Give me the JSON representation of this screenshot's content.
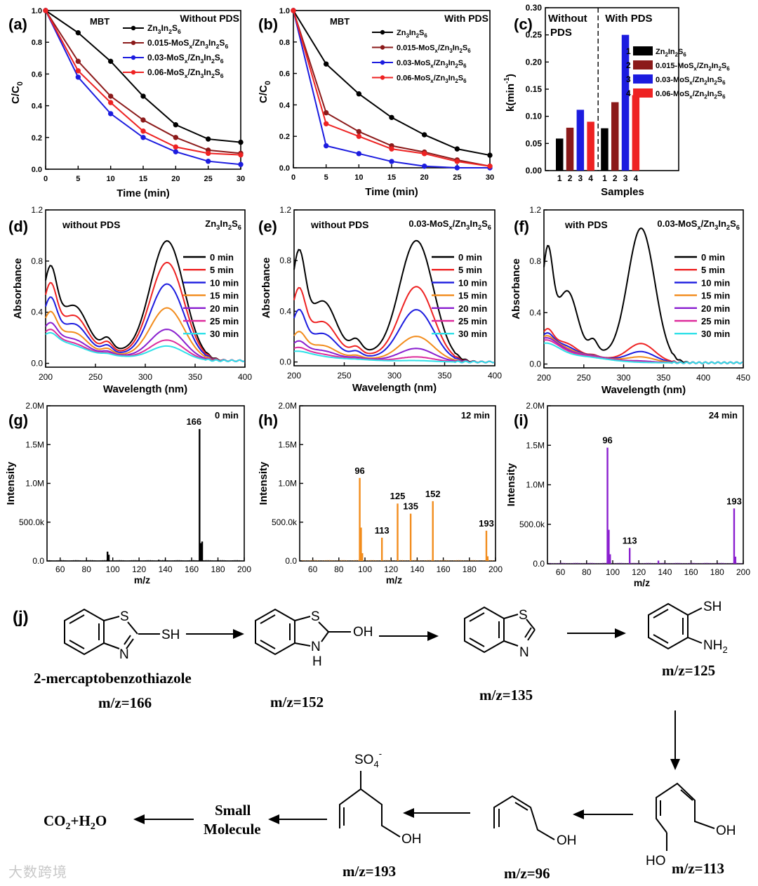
{
  "chart_data": [
    {
      "id": "a",
      "panel_label": "(a)",
      "type": "line",
      "title_left": "MBT",
      "title_right": "Without PDS",
      "xlabel": "Time (min)",
      "ylabel": "C/C0",
      "xlim": [
        0,
        30
      ],
      "ylim": [
        0,
        1.0
      ],
      "xticks": [
        "0",
        "5",
        "10",
        "15",
        "20",
        "25",
        "30"
      ],
      "yticks": [
        "0.0",
        "0.2",
        "0.4",
        "0.6",
        "0.8",
        "1.0"
      ],
      "x": [
        0,
        5,
        10,
        15,
        20,
        25,
        30
      ],
      "series": [
        {
          "name": "Zn3In2S6",
          "label_main": "Zn",
          "label_sub": "3",
          "label_rest": "In",
          "label_sub2": "2",
          "label_rest2": "S",
          "label_sub3": "6",
          "label_pre": "",
          "color": "#000000",
          "values": [
            1.0,
            0.86,
            0.68,
            0.46,
            0.28,
            0.19,
            0.17
          ]
        },
        {
          "name": "0.015-MoSx/Zn3In2S6",
          "label_pre": "0.015-MoS",
          "color": "#8b1a1a",
          "values": [
            1.0,
            0.68,
            0.46,
            0.31,
            0.2,
            0.12,
            0.1
          ]
        },
        {
          "name": "0.03-MoSx/Zn3In2S6",
          "label_pre": "0.03-MoS",
          "color": "#1c1cdf",
          "values": [
            1.0,
            0.58,
            0.35,
            0.2,
            0.11,
            0.05,
            0.03
          ]
        },
        {
          "name": "0.06-MoSx/Zn3In2S6",
          "label_pre": "0.06-MoS",
          "color": "#ee2222",
          "values": [
            1.0,
            0.62,
            0.42,
            0.24,
            0.14,
            0.1,
            0.09
          ]
        }
      ]
    },
    {
      "id": "b",
      "panel_label": "(b)",
      "type": "line",
      "title_left": "MBT",
      "title_right": "With PDS",
      "xlabel": "Time (min)",
      "ylabel": "C/C0",
      "xlim": [
        0,
        30
      ],
      "ylim": [
        0,
        1.0
      ],
      "xticks": [
        "0",
        "5",
        "10",
        "15",
        "20",
        "25",
        "30"
      ],
      "yticks": [
        "0.0",
        "0.2",
        "0.4",
        "0.6",
        "0.8",
        "1.0"
      ],
      "x": [
        0,
        5,
        10,
        15,
        20,
        25,
        30
      ],
      "series": [
        {
          "name": "Zn3In2S6",
          "label_pre": "",
          "color": "#000000",
          "values": [
            1.0,
            0.66,
            0.47,
            0.32,
            0.21,
            0.12,
            0.08
          ]
        },
        {
          "name": "0.015-MoSx/Zn3In2S6",
          "label_pre": "0.015-MoS",
          "color": "#8b1a1a",
          "values": [
            1.0,
            0.35,
            0.23,
            0.14,
            0.1,
            0.05,
            0.01
          ]
        },
        {
          "name": "0.03-MoSx/Zn3In2S6",
          "label_pre": "0.03-MoS",
          "color": "#1c1cdf",
          "values": [
            1.0,
            0.14,
            0.09,
            0.04,
            0.01,
            0.0,
            0.0
          ]
        },
        {
          "name": "0.06-MoSx/Zn3In2S6",
          "label_pre": "0.06-MoS",
          "color": "#ee2222",
          "values": [
            1.0,
            0.28,
            0.2,
            0.12,
            0.09,
            0.04,
            0.01
          ]
        }
      ]
    },
    {
      "id": "c",
      "panel_label": "(c)",
      "type": "bar",
      "xlabel": "Samples",
      "ylabel": "k(min-1)",
      "ylim": [
        0,
        0.3
      ],
      "yticks": [
        "0.00",
        "0.05",
        "0.10",
        "0.15",
        "0.20",
        "0.25",
        "0.30"
      ],
      "group_labels": [
        "Without PDS",
        "With PDS"
      ],
      "group_left_line1": "Without",
      "group_left_line2": "PDS",
      "group_right": "With PDS",
      "categories": [
        "1",
        "2",
        "3",
        "4",
        "1",
        "2",
        "3",
        "4"
      ],
      "values": [
        0.059,
        0.079,
        0.112,
        0.09,
        0.078,
        0.126,
        0.25,
        0.139
      ],
      "colors": [
        "#000000",
        "#8b1a1a",
        "#1c1cdf",
        "#ee2222",
        "#000000",
        "#8b1a1a",
        "#1c1cdf",
        "#ee2222"
      ],
      "legend": [
        {
          "num": "1",
          "name": "Zn2In2S6",
          "color": "#000000"
        },
        {
          "num": "2",
          "name": "0.015-MoSx/Zn2In2S6",
          "color": "#8b1a1a"
        },
        {
          "num": "3",
          "name": "0.03-MoSx/Zn2In2S6",
          "color": "#1c1cdf"
        },
        {
          "num": "4",
          "name": "0.06-MoSx/Zn2In2S6",
          "color": "#ee2222"
        }
      ]
    },
    {
      "id": "d",
      "panel_label": "(d)",
      "type": "line",
      "title_left": "without PDS",
      "title_right": "Zn3In2S6",
      "xlabel": "Wavelength (nm)",
      "ylabel": "Absorbance",
      "xlim": [
        200,
        400
      ],
      "ylim": [
        -0.03,
        1.2
      ],
      "xticks": [
        "200",
        "250",
        "300",
        "350",
        "400"
      ],
      "xtick_values": [
        200,
        250,
        300,
        350,
        400
      ],
      "yticks": [
        "0.0",
        "0.4",
        "0.8",
        "1.2"
      ],
      "ytick_values": [
        0,
        0.4,
        0.8,
        1.2
      ],
      "legend": [
        "0 min",
        "5 min",
        "10 min",
        "15 min",
        "20 min",
        "25 min",
        "30 min"
      ],
      "colors": [
        "#000000",
        "#ee2222",
        "#1c1cdf",
        "#f28c1c",
        "#8a1fcf",
        "#dd2b9b",
        "#2fe0e8"
      ],
      "base": {
        "p205": 0.72,
        "p230": 0.49,
        "p322": 0.98,
        "floor": 0.02
      },
      "scales": [
        1.0,
        0.82,
        0.64,
        0.44,
        0.26,
        0.17,
        0.12
      ],
      "uv_scales": [
        1.0,
        0.82,
        0.7,
        0.6,
        0.55,
        0.5,
        0.48
      ]
    },
    {
      "id": "e",
      "panel_label": "(e)",
      "type": "line",
      "title_left": "without PDS",
      "title_right": "0.03-MoSx/Zn3In2S6",
      "xlabel": "Wavelength (nm)",
      "ylabel": "Absorbance",
      "xlim": [
        200,
        400
      ],
      "ylim": [
        -0.03,
        1.2
      ],
      "xticks": [
        "200",
        "250",
        "300",
        "350",
        "400"
      ],
      "xtick_values": [
        200,
        250,
        300,
        350,
        400
      ],
      "yticks": [
        "0.0",
        "0.4",
        "0.8",
        "1.2"
      ],
      "ytick_values": [
        0,
        0.4,
        0.8,
        1.2
      ],
      "legend": [
        "0 min",
        "5 min",
        "10 min",
        "15 min",
        "20 min",
        "25 min",
        "30 min"
      ],
      "colors": [
        "#000000",
        "#ee2222",
        "#1c1cdf",
        "#f28c1c",
        "#8a1fcf",
        "#dd2b9b",
        "#2fe0e8"
      ],
      "base": {
        "p205": 0.86,
        "p230": 0.54,
        "p322": 1.0,
        "floor": 0.0
      },
      "scales": [
        1.0,
        0.62,
        0.43,
        0.21,
        0.11,
        0.04,
        0.01
      ],
      "uv_scales": [
        1.0,
        0.72,
        0.52,
        0.36,
        0.3,
        0.26,
        0.22
      ]
    },
    {
      "id": "f",
      "panel_label": "(f)",
      "type": "line",
      "title_left": "with PDS",
      "title_right": "0.03-MoSx/Zn3In2S6",
      "xlabel": "Wavelength (nm)",
      "ylabel": "Absorbance",
      "xlim": [
        200,
        450
      ],
      "ylim": [
        -0.03,
        1.2
      ],
      "xticks": [
        "200",
        "250",
        "300",
        "350",
        "400",
        "450"
      ],
      "xtick_values": [
        200,
        250,
        300,
        350,
        400,
        450
      ],
      "yticks": [
        "0.0",
        "0.4",
        "0.8",
        "1.2"
      ],
      "ytick_values": [
        0,
        0.4,
        0.8,
        1.2
      ],
      "legend": [
        "0 min",
        "5 min",
        "10 min",
        "15 min",
        "20 min",
        "25 min",
        "30 min"
      ],
      "colors": [
        "#000000",
        "#ee2222",
        "#1c1cdf",
        "#f28c1c",
        "#8a1fcf",
        "#dd2b9b",
        "#2fe0e8"
      ],
      "base": {
        "p205": 0.88,
        "p230": 0.62,
        "p322": 1.09,
        "floor": 0.01
      },
      "scales": [
        1.0,
        0.14,
        0.08,
        0.04,
        0.01,
        0.005,
        0.0
      ],
      "uv_scales": [
        1.0,
        0.52,
        0.52,
        0.52,
        0.52,
        0.48,
        0.42
      ]
    },
    {
      "id": "g",
      "panel_label": "(g)",
      "type": "bar",
      "title_right": "0 min",
      "xlabel": "m/z",
      "ylabel": "Intensity",
      "xlim": [
        50,
        200
      ],
      "ylim": [
        0,
        2000000
      ],
      "xticks": [
        "60",
        "80",
        "100",
        "120",
        "140",
        "160",
        "180",
        "200"
      ],
      "xtick_values": [
        60,
        80,
        100,
        120,
        140,
        160,
        180,
        200
      ],
      "yticks": [
        "0.0",
        "500.0k",
        "1.0M",
        "1.5M",
        "2.0M"
      ],
      "ytick_values": [
        0,
        500000,
        1000000,
        1500000,
        2000000
      ],
      "color": "#000000",
      "peaks": [
        {
          "mz": 166,
          "value": 1700000,
          "label": "166"
        },
        {
          "mz": 167,
          "value": 230000,
          "label": ""
        },
        {
          "mz": 168,
          "value": 250000,
          "label": ""
        },
        {
          "mz": 96,
          "value": 120000,
          "label": ""
        },
        {
          "mz": 97,
          "value": 80000,
          "label": ""
        },
        {
          "mz": 135,
          "value": 15000,
          "label": ""
        }
      ]
    },
    {
      "id": "h",
      "panel_label": "(h)",
      "type": "bar",
      "title_right": "12 min",
      "xlabel": "m/z",
      "ylabel": "Intensity",
      "xlim": [
        50,
        200
      ],
      "ylim": [
        0,
        2000000
      ],
      "xticks": [
        "60",
        "80",
        "100",
        "120",
        "140",
        "160",
        "180",
        "200"
      ],
      "xtick_values": [
        60,
        80,
        100,
        120,
        140,
        160,
        180,
        200
      ],
      "yticks": [
        "0.0",
        "500.0k",
        "1.0M",
        "1.5M",
        "2.0M"
      ],
      "ytick_values": [
        0,
        500000,
        1000000,
        1500000,
        2000000
      ],
      "color": "#f28c1c",
      "peaks": [
        {
          "mz": 96,
          "value": 1070000,
          "label": "96"
        },
        {
          "mz": 97,
          "value": 430000,
          "label": ""
        },
        {
          "mz": 98,
          "value": 100000,
          "label": ""
        },
        {
          "mz": 113,
          "value": 300000,
          "label": "113"
        },
        {
          "mz": 125,
          "value": 740000,
          "label": "125"
        },
        {
          "mz": 135,
          "value": 610000,
          "label": "135"
        },
        {
          "mz": 152,
          "value": 770000,
          "label": "152"
        },
        {
          "mz": 193,
          "value": 390000,
          "label": "193"
        },
        {
          "mz": 194,
          "value": 60000,
          "label": ""
        }
      ]
    },
    {
      "id": "i",
      "panel_label": "(i)",
      "type": "bar",
      "title_right": "24 min",
      "xlabel": "m/z",
      "ylabel": "Intensity",
      "xlim": [
        50,
        200
      ],
      "ylim": [
        0,
        2000000
      ],
      "xticks": [
        "60",
        "80",
        "100",
        "120",
        "140",
        "160",
        "180",
        "200"
      ],
      "xtick_values": [
        60,
        80,
        100,
        120,
        140,
        160,
        180,
        200
      ],
      "yticks": [
        "0.0",
        "500.0k",
        "1.0M",
        "1.5M",
        "2.0M"
      ],
      "ytick_values": [
        0,
        500000,
        1000000,
        1500000,
        2000000
      ],
      "color": "#8a1fcf",
      "peaks": [
        {
          "mz": 96,
          "value": 1470000,
          "label": "96"
        },
        {
          "mz": 97,
          "value": 430000,
          "label": ""
        },
        {
          "mz": 98,
          "value": 120000,
          "label": ""
        },
        {
          "mz": 113,
          "value": 200000,
          "label": "113"
        },
        {
          "mz": 135,
          "value": 40000,
          "label": ""
        },
        {
          "mz": 193,
          "value": 700000,
          "label": "193"
        },
        {
          "mz": 194,
          "value": 90000,
          "label": ""
        }
      ]
    }
  ],
  "pathway": {
    "panel_label": "(j)",
    "mbt_name": "2-mercaptobenzothiazole",
    "mz166": "m/z=166",
    "mz152": "m/z=152",
    "mz135": "m/z=135",
    "mz125": "m/z=125",
    "mz113": "m/z=113",
    "mz96": "m/z=96",
    "mz193": "m/z=193",
    "small_molecule_line1": "Small",
    "small_molecule_line2": "Molecule",
    "co2": "CO",
    "co2_sub": "2",
    "plus_h2o": "+H",
    "h2o_sub": "2",
    "h2o_o": "O",
    "atoms": {
      "S": "S",
      "N": "N",
      "SH": "SH",
      "OH": "OH",
      "H": "H",
      "NH2": "NH",
      "NH2_sub": "2",
      "SO4": "SO",
      "SO4_sub": "4",
      "SO4_sup": "-",
      "HO": "HO"
    }
  },
  "watermark": "大数跨境"
}
